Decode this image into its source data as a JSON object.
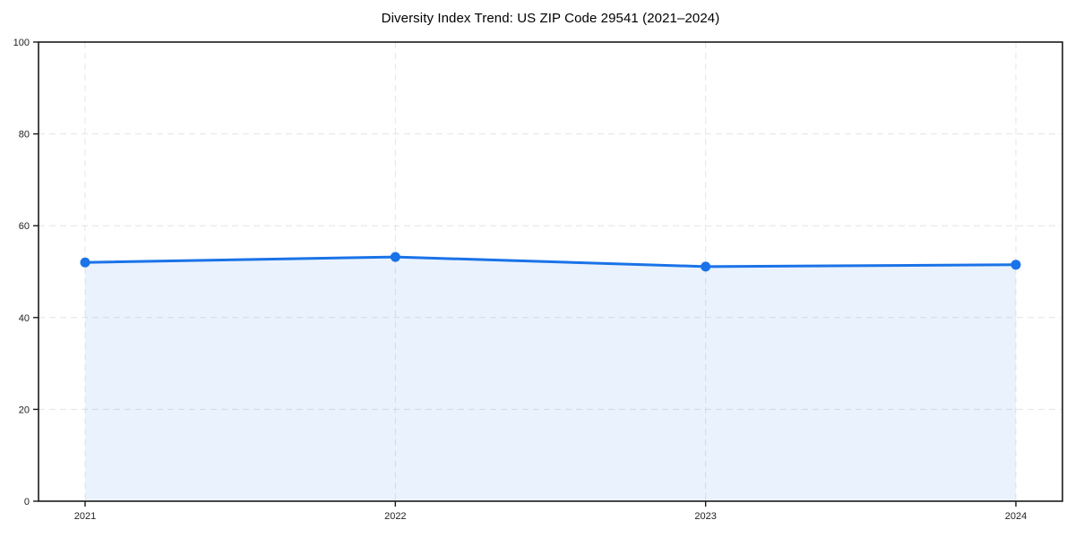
{
  "page": {
    "background": "#ffffff"
  },
  "chart_data": {
    "type": "area",
    "title": "Diversity Index Trend: US ZIP Code 29541 (2021–2024)",
    "categories": [
      "2021",
      "2022",
      "2023",
      "2024"
    ],
    "values": [
      52.0,
      53.2,
      51.1,
      51.5
    ],
    "series_name": "Diversity Index",
    "xlabel": "",
    "ylabel": "",
    "ylim": [
      0,
      100
    ],
    "yticks": [
      0,
      20,
      40,
      60,
      80,
      100
    ],
    "grid": "dashed-both-axes",
    "legend_position": "none",
    "colors": {
      "line": "#1a73e8",
      "marker": "#1a73e8",
      "fill": "rgba(26,115,232,0.09)",
      "grid": "#e4e4e4",
      "axis": "#1a1a1a",
      "tick_label": "#222222",
      "title": "#000000"
    }
  }
}
